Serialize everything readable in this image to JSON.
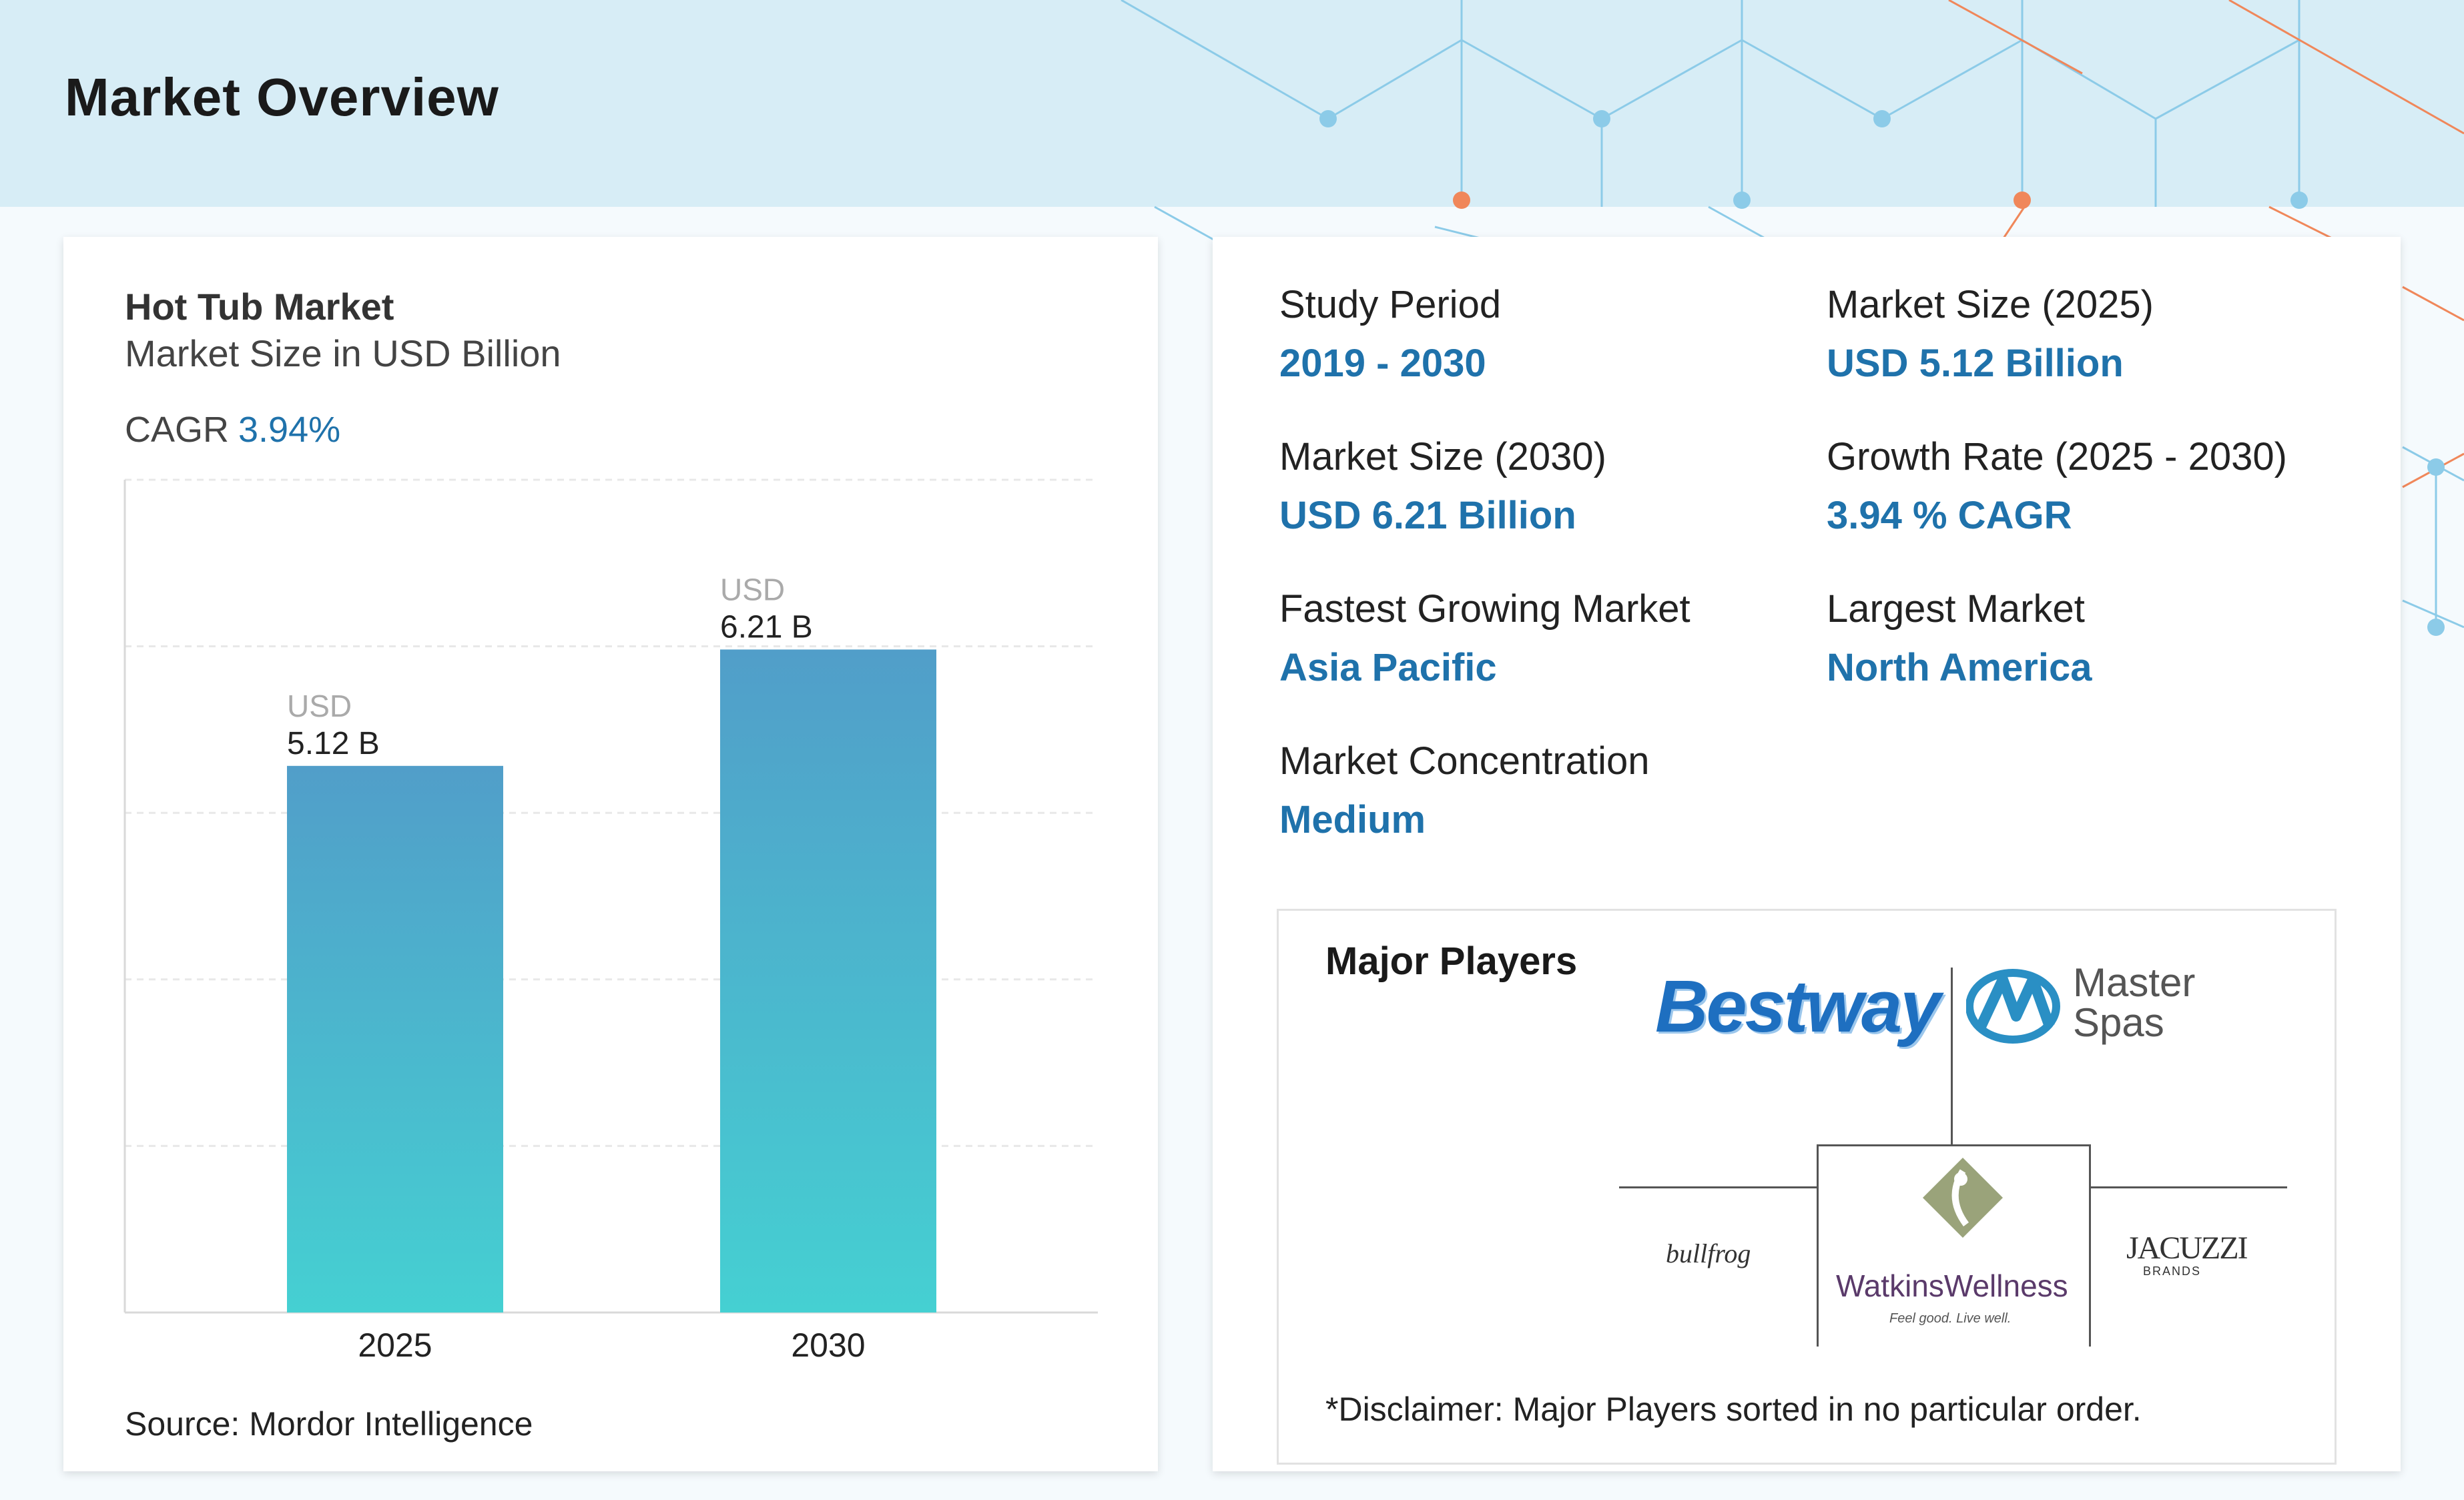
{
  "header": {
    "title": "Market Overview"
  },
  "left_card": {
    "title": "Hot Tub Market",
    "subtitle": "Market Size in USD Billion",
    "cagr_label": "CAGR",
    "cagr_value": "3.94%",
    "source": "Source: Mordor Intelligence"
  },
  "chart_data": {
    "type": "bar",
    "categories": [
      "2025",
      "2030"
    ],
    "values": [
      5.12,
      6.21
    ],
    "data_labels": [
      {
        "prefix": "USD",
        "value": "5.12 B"
      },
      {
        "prefix": "USD",
        "value": "6.21 B"
      }
    ],
    "title": "Hot Tub Market",
    "subtitle": "Market Size in USD Billion",
    "xlabel": "",
    "ylabel": "",
    "ylim": [
      0,
      7.8
    ],
    "grid": true,
    "legend": "none",
    "colors": {
      "bar_top": "#519ec9",
      "bar_bottom": "#45d0d2",
      "grid": "#e8e8e8",
      "axis": "#d9d9d9"
    }
  },
  "stats": [
    {
      "label": "Study Period",
      "value": "2019 - 2030"
    },
    {
      "label": "Market Size (2025)",
      "value": "USD 5.12 Billion"
    },
    {
      "label": "Market Size (2030)",
      "value": "USD 6.21 Billion"
    },
    {
      "label": "Growth Rate (2025 - 2030)",
      "value": "3.94 % CAGR"
    },
    {
      "label": "Fastest Growing Market",
      "value": "Asia Pacific"
    },
    {
      "label": "Largest Market",
      "value": "North America"
    },
    {
      "label": "Market Concentration",
      "value": "Medium"
    }
  ],
  "players": {
    "title": "Major Players",
    "logos": {
      "bestway": "Bestway",
      "master_spas_line1": "Master",
      "master_spas_line2": "Spas",
      "bullfrog": "bullfrog",
      "watkins": "WatkinsWellness",
      "watkins_tagline": "Feel good. Live well.",
      "jacuzzi": "JACUZZI",
      "jacuzzi_sub": "BRANDS"
    },
    "disclaimer": "*Disclaimer: Major Players sorted in no particular order."
  },
  "colors": {
    "accent": "#1f72ab",
    "banner": "#d7edf6",
    "network_blue": "#8ccbe8",
    "network_orange": "#f0875a"
  }
}
